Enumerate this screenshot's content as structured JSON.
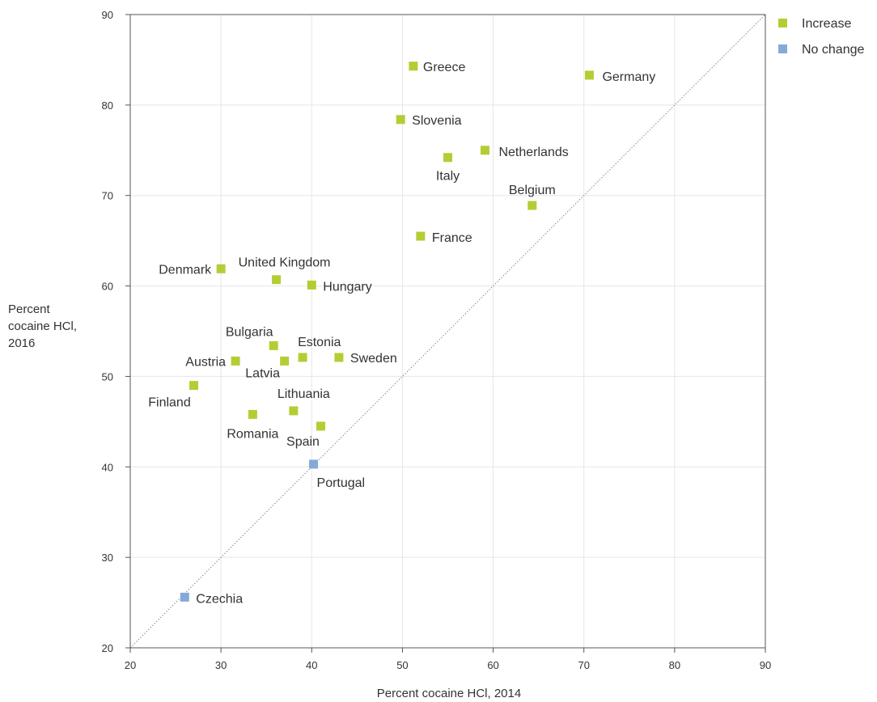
{
  "chart_data": {
    "type": "scatter",
    "title": "",
    "xlabel": "Percent cocaine HCl, 2014",
    "ylabel_lines": [
      "Percent",
      "cocaine HCl,",
      "2016"
    ],
    "xlim": [
      20,
      90
    ],
    "ylim": [
      20,
      90
    ],
    "x_ticks": [
      20,
      30,
      40,
      50,
      60,
      70,
      80,
      90
    ],
    "y_ticks": [
      20,
      30,
      40,
      50,
      60,
      70,
      80,
      90
    ],
    "grid": true,
    "reference_line": "y = x",
    "legend_position": "top-right",
    "series": [
      {
        "name": "Increase",
        "color": "#b5cd34",
        "points": [
          {
            "label": "Greece",
            "x": 51.2,
            "y": 84.3
          },
          {
            "label": "Germany",
            "x": 70.6,
            "y": 83.3
          },
          {
            "label": "Slovenia",
            "x": 49.8,
            "y": 78.4
          },
          {
            "label": "Netherlands",
            "x": 59.1,
            "y": 75.0
          },
          {
            "label": "Italy",
            "x": 55.0,
            "y": 74.2
          },
          {
            "label": "Belgium",
            "x": 64.3,
            "y": 68.9
          },
          {
            "label": "France",
            "x": 52.0,
            "y": 65.5
          },
          {
            "label": "Denmark",
            "x": 30.0,
            "y": 61.9
          },
          {
            "label": "United Kingdom",
            "x": 36.1,
            "y": 60.7
          },
          {
            "label": "Hungary",
            "x": 40.0,
            "y": 60.1
          },
          {
            "label": "Bulgaria",
            "x": 35.8,
            "y": 53.4
          },
          {
            "label": "Estonia",
            "x": 39.0,
            "y": 52.1
          },
          {
            "label": "Sweden",
            "x": 43.0,
            "y": 52.1
          },
          {
            "label": "Austria",
            "x": 31.6,
            "y": 51.7
          },
          {
            "label": "Latvia",
            "x": 37.0,
            "y": 51.7
          },
          {
            "label": "Finland",
            "x": 27.0,
            "y": 49.0
          },
          {
            "label": "Lithuania",
            "x": 38.0,
            "y": 46.2
          },
          {
            "label": "Romania",
            "x": 33.5,
            "y": 45.8
          },
          {
            "label": "Spain",
            "x": 41.0,
            "y": 44.5
          }
        ]
      },
      {
        "name": "No change",
        "color": "#86a9d9",
        "points": [
          {
            "label": "Portugal",
            "x": 40.2,
            "y": 40.3
          },
          {
            "label": "Czechia",
            "x": 26.0,
            "y": 25.6
          }
        ]
      }
    ]
  }
}
